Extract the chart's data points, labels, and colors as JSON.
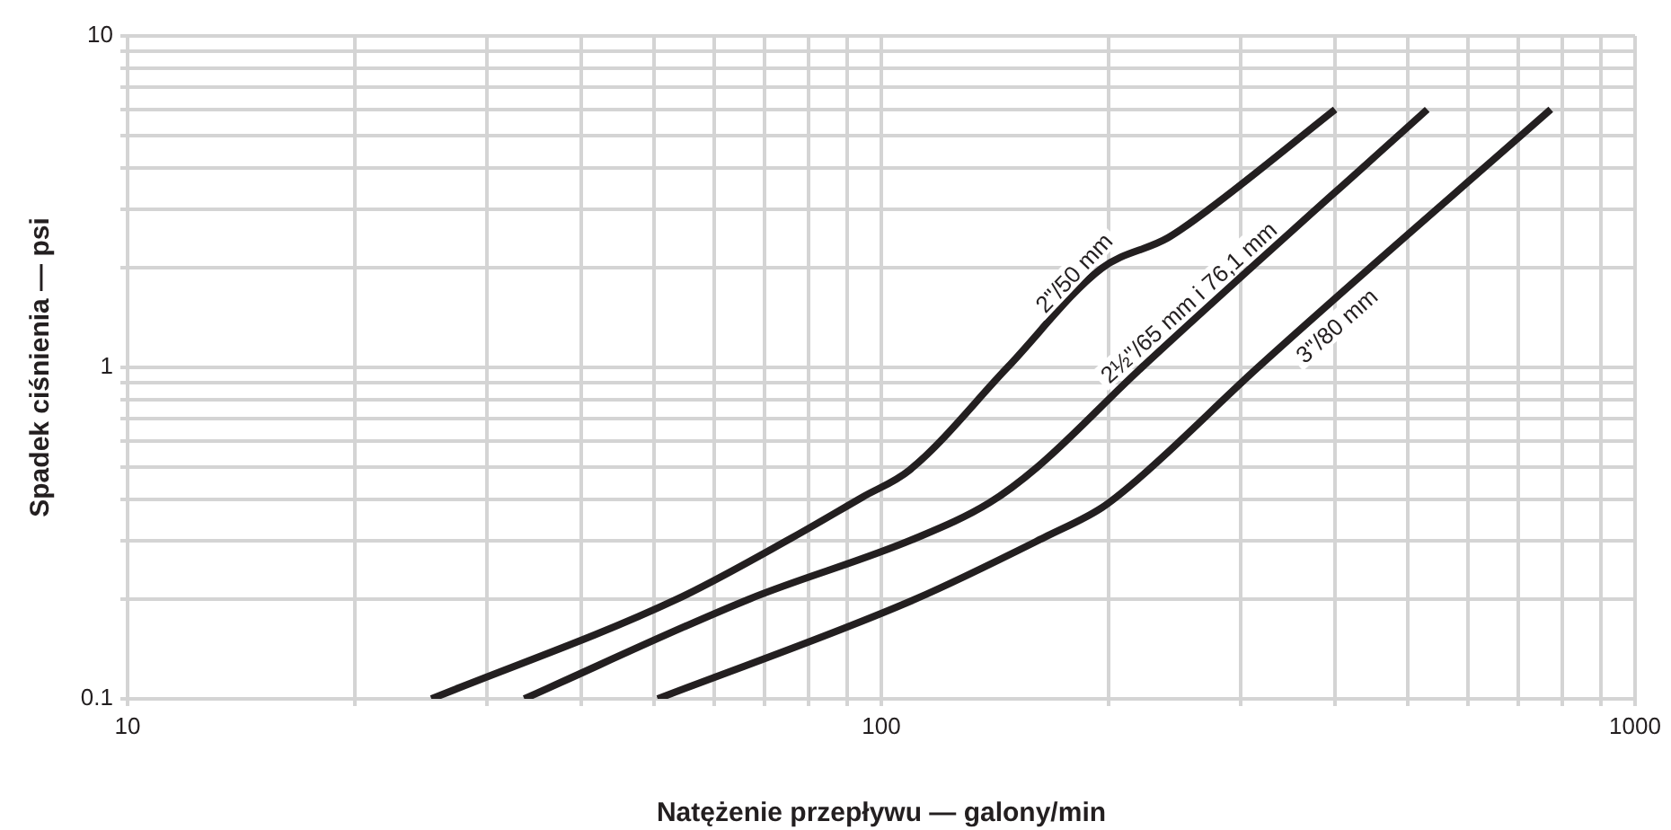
{
  "chart_data": {
    "type": "line",
    "xlabel": "Natężenie przepływu — galony/min",
    "ylabel": "Spadek ciśnienia — psi",
    "log": "xy",
    "grid": true,
    "legend": false,
    "marker": "none",
    "line_style": "solid",
    "xlim": [
      10,
      1000
    ],
    "ylim": [
      0.1,
      10
    ],
    "xticks": [
      10,
      {
        "value": 20,
        "label": null
      },
      {
        "value": 30,
        "label": null
      },
      {
        "value": 40,
        "label": null
      },
      {
        "value": 50,
        "label": null
      },
      {
        "value": 60,
        "label": null
      },
      {
        "value": 70,
        "label": null
      },
      {
        "value": 80,
        "label": null
      },
      {
        "value": 90,
        "label": null
      },
      100,
      {
        "value": 200,
        "label": null
      },
      {
        "value": 300,
        "label": null
      },
      {
        "value": 400,
        "label": null
      },
      {
        "value": 500,
        "label": null
      },
      {
        "value": 600,
        "label": null
      },
      {
        "value": 700,
        "label": null
      },
      {
        "value": 800,
        "label": null
      },
      {
        "value": 900,
        "label": null
      },
      1000
    ],
    "yticks": [
      {
        "value": 0.1,
        "label": "0.1"
      },
      {
        "value": 0.2,
        "label": null
      },
      {
        "value": 0.3,
        "label": null
      },
      {
        "value": 0.4,
        "label": null
      },
      {
        "value": 0.5,
        "label": null
      },
      {
        "value": 0.6,
        "label": null
      },
      {
        "value": 0.7,
        "label": null
      },
      {
        "value": 0.8,
        "label": null
      },
      {
        "value": 0.9,
        "label": null
      },
      1,
      {
        "value": 2,
        "label": null
      },
      {
        "value": 3,
        "label": null
      },
      {
        "value": 4,
        "label": null
      },
      {
        "value": 5,
        "label": null
      },
      {
        "value": 6,
        "label": null
      },
      {
        "value": 7,
        "label": null
      },
      {
        "value": 8,
        "label": null
      },
      {
        "value": 9,
        "label": null
      },
      10
    ],
    "series": [
      {
        "name": "2\"/50 mm",
        "color": "#231f20",
        "x": [
          25.3,
          53.6,
          75.9,
          94.4,
          109,
          147,
          196,
          240,
          272,
          400
        ],
        "values": [
          0.1,
          0.2,
          0.305,
          0.406,
          0.49,
          1.0,
          1.99,
          2.46,
          3.0,
          6.0
        ]
      },
      {
        "name": "2½\"/65 mm i 76,1 mm",
        "color": "#231f20",
        "x": [
          33.6,
          66.8,
          111,
          139,
          161,
          219,
          530
        ],
        "values": [
          0.1,
          0.2,
          0.305,
          0.39,
          0.5,
          0.975,
          6.0
        ]
      },
      {
        "name": "3\"/80 mm",
        "color": "#231f20",
        "x": [
          50.5,
          111,
          166,
          196,
          219,
          316,
          773
        ],
        "values": [
          0.1,
          0.2,
          0.31,
          0.377,
          0.46,
          1.0,
          6.0
        ]
      }
    ]
  }
}
